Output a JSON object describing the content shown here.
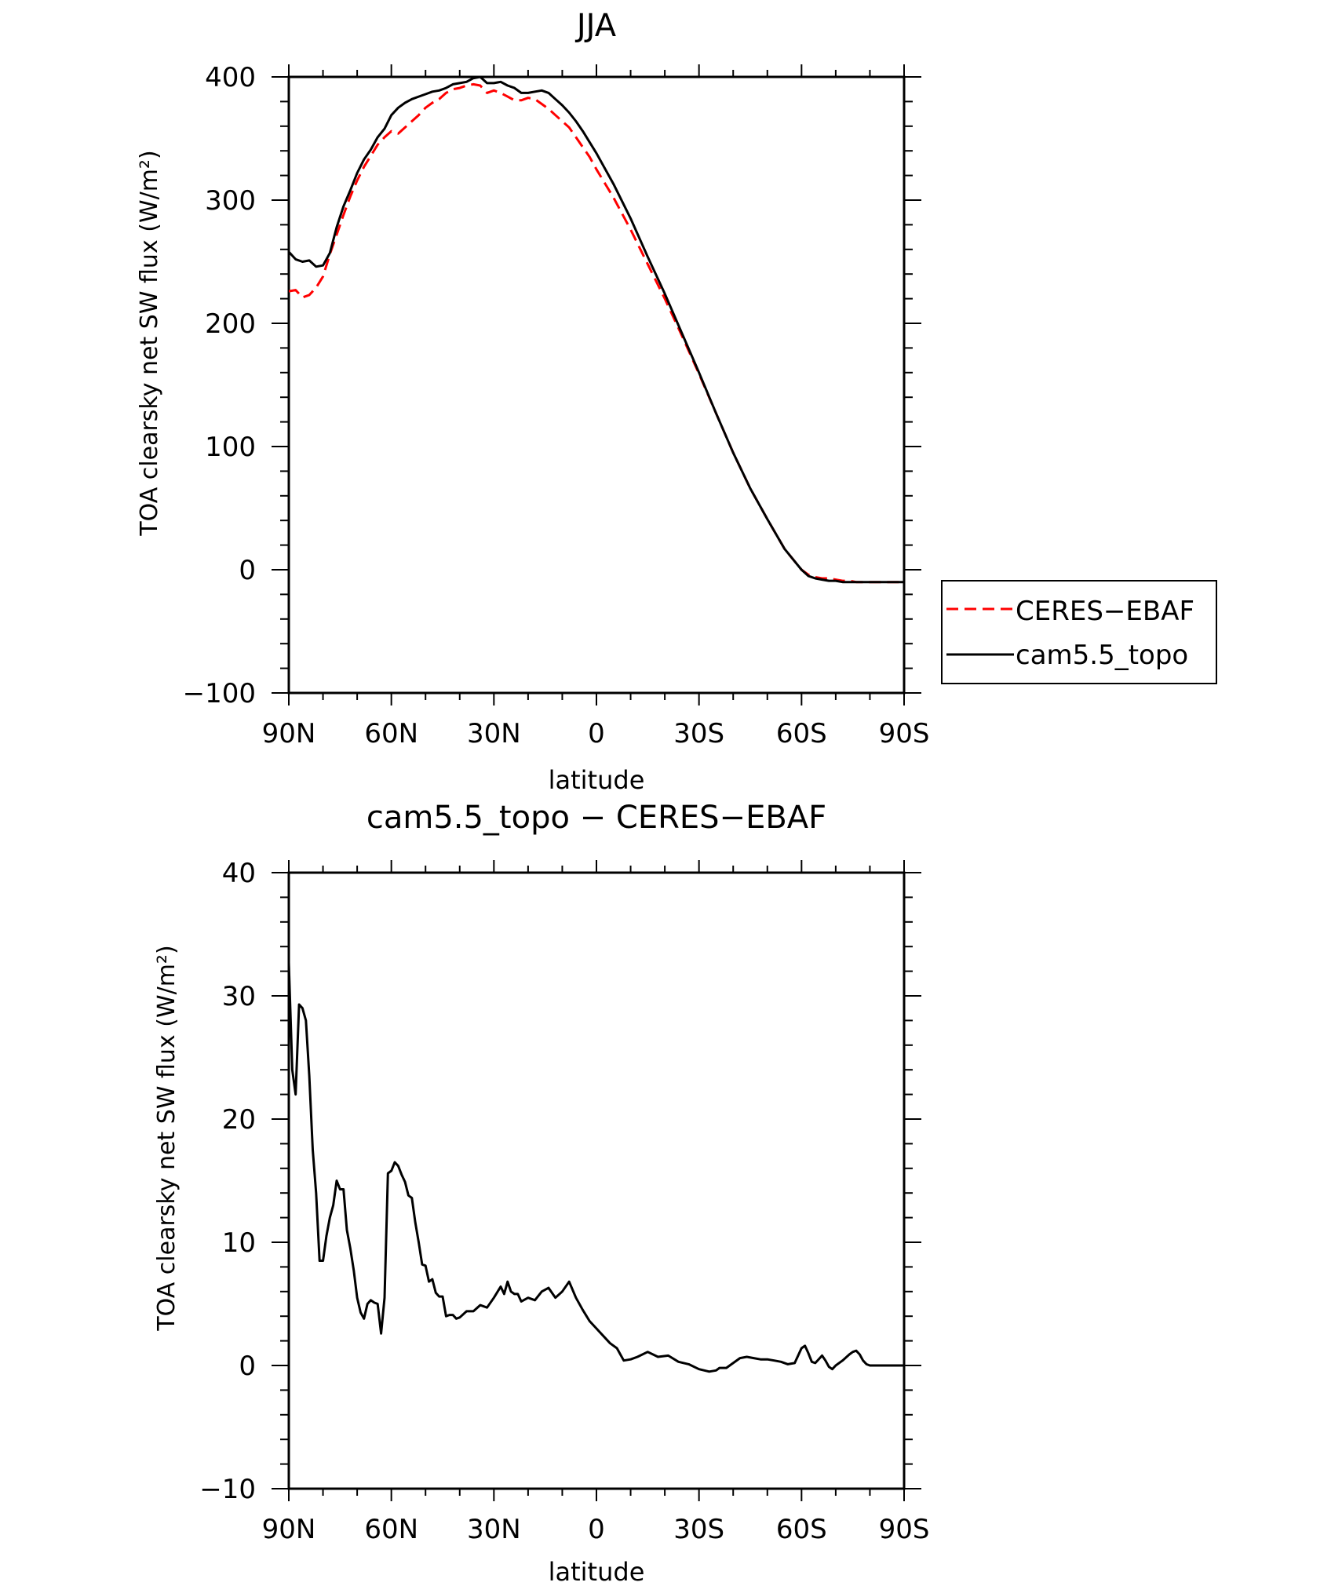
{
  "chart_data": [
    {
      "type": "line",
      "title": "JJA",
      "xlabel": "latitude",
      "ylabel": "TOA clearsky net SW flux (W/m²)",
      "xlim": [
        90,
        -90
      ],
      "ylim": [
        -100,
        400
      ],
      "x_ticks": [
        90,
        60,
        30,
        0,
        -30,
        -60,
        -90
      ],
      "x_tick_labels": [
        "90N",
        "60N",
        "30N",
        "0",
        "30S",
        "60S",
        "90S"
      ],
      "y_ticks": [
        -100,
        0,
        100,
        200,
        300,
        400
      ],
      "y_tick_labels": [
        "−100",
        "0",
        "100",
        "200",
        "300",
        "400"
      ],
      "legend": {
        "placement": "right",
        "entries": [
          {
            "label": "CERES−EBAF",
            "color": "#ff0000",
            "style": "dashed"
          },
          {
            "label": "cam5.5_topo",
            "color": "#000000",
            "style": "solid"
          }
        ]
      },
      "series": [
        {
          "name": "CERES−EBAF",
          "color": "#ff0000",
          "style": "dashed",
          "x": [
            90,
            88,
            86,
            84,
            82,
            80,
            78,
            76,
            74,
            72,
            70,
            68,
            66,
            64,
            62,
            60,
            58,
            56,
            54,
            52,
            50,
            48,
            46,
            44,
            42,
            40,
            38,
            36,
            34,
            32,
            30,
            28,
            26,
            24,
            22,
            20,
            18,
            16,
            14,
            12,
            10,
            8,
            6,
            4,
            2,
            0,
            -5,
            -10,
            -15,
            -20,
            -25,
            -30,
            -35,
            -40,
            -45,
            -50,
            -55,
            -60,
            -62,
            -64,
            -66,
            -68,
            -70,
            -72,
            -74,
            -76,
            -78,
            -80,
            -85,
            -90
          ],
          "y": [
            226,
            227,
            221,
            223,
            229,
            238,
            256,
            272,
            288,
            303,
            316,
            327,
            336,
            345,
            351,
            356,
            354,
            359,
            364,
            369,
            375,
            379,
            382,
            387,
            390,
            391,
            393,
            394,
            393,
            387,
            389,
            387,
            384,
            381,
            381,
            383,
            382,
            378,
            374,
            369,
            364,
            359,
            351,
            343,
            335,
            325,
            302,
            276,
            248,
            220,
            190,
            159,
            127,
            95,
            66,
            41,
            17,
            0,
            -4,
            -6,
            -7,
            -7,
            -8,
            -9,
            -9,
            -10,
            -10,
            -10,
            -10,
            -10
          ]
        },
        {
          "name": "cam5.5_topo",
          "color": "#000000",
          "style": "solid",
          "x": [
            90,
            88,
            86,
            84,
            82,
            80,
            78,
            76,
            74,
            72,
            70,
            68,
            66,
            64,
            62,
            60,
            58,
            56,
            54,
            52,
            50,
            48,
            46,
            44,
            42,
            40,
            38,
            36,
            34,
            32,
            30,
            28,
            26,
            24,
            22,
            20,
            18,
            16,
            14,
            12,
            10,
            8,
            6,
            4,
            2,
            0,
            -5,
            -10,
            -15,
            -20,
            -25,
            -30,
            -35,
            -40,
            -45,
            -50,
            -55,
            -60,
            -62,
            -64,
            -66,
            -68,
            -70,
            -72,
            -74,
            -76,
            -78,
            -80,
            -85,
            -90
          ],
          "y": [
            258,
            252,
            250,
            251,
            246,
            247,
            257,
            278,
            295,
            308,
            322,
            333,
            341,
            351,
            358,
            369,
            375,
            379,
            382,
            384,
            386,
            388,
            389,
            391,
            394,
            395,
            396,
            399,
            400,
            395,
            395,
            396,
            393,
            391,
            387,
            387,
            388,
            389,
            387,
            382,
            377,
            371,
            364,
            356,
            347,
            338,
            313,
            285,
            254,
            224,
            192,
            160,
            127,
            95,
            66,
            41,
            17,
            0,
            -5,
            -7,
            -8,
            -9,
            -9,
            -10,
            -10,
            -10,
            -10,
            -10,
            -10,
            -10
          ]
        }
      ]
    },
    {
      "type": "line",
      "title": "cam5.5_topo − CERES−EBAF",
      "xlabel": "latitude",
      "ylabel": "TOA clearsky net SW flux (W/m²)",
      "xlim": [
        90,
        -90
      ],
      "ylim": [
        -10,
        40
      ],
      "x_ticks": [
        90,
        60,
        30,
        0,
        -30,
        -60,
        -90
      ],
      "x_tick_labels": [
        "90N",
        "60N",
        "30N",
        "0",
        "30S",
        "60S",
        "90S"
      ],
      "y_ticks": [
        -10,
        0,
        10,
        20,
        30,
        40
      ],
      "y_tick_labels": [
        "−10",
        "0",
        "10",
        "20",
        "30",
        "40"
      ],
      "series": [
        {
          "name": "cam5.5_topo − CERES−EBAF",
          "color": "#000000",
          "style": "solid",
          "x": [
            90,
            89,
            88,
            87,
            86,
            85,
            84,
            83,
            82,
            81,
            80,
            79,
            78,
            77,
            76,
            75,
            74,
            73,
            72,
            71,
            70,
            69,
            68,
            67,
            66,
            65,
            64,
            63,
            62,
            61,
            60,
            59,
            58,
            57,
            56,
            55,
            54,
            53,
            52,
            51,
            50,
            49,
            48,
            47,
            46,
            45,
            44,
            43,
            42,
            41,
            40,
            38,
            36,
            34,
            32,
            30,
            28,
            27,
            26,
            25,
            24,
            23,
            22,
            20,
            18,
            16,
            14,
            12,
            10,
            8,
            6,
            4,
            2,
            0,
            -2,
            -4,
            -6,
            -8,
            -10,
            -12,
            -15,
            -18,
            -21,
            -24,
            -27,
            -30,
            -33,
            -35,
            -36,
            -38,
            -40,
            -42,
            -44,
            -46,
            -48,
            -50,
            -52,
            -54,
            -56,
            -58,
            -60,
            -61,
            -62,
            -63,
            -64,
            -65,
            -66,
            -67,
            -68,
            -69,
            -70,
            -72,
            -74,
            -75,
            -76,
            -77,
            -78,
            -79,
            -80,
            -82,
            -85,
            -90
          ],
          "y": [
            32.7,
            24,
            22,
            29.3,
            29,
            28,
            23.5,
            17.5,
            14,
            8.5,
            8.5,
            10.5,
            12,
            13,
            15,
            14.3,
            14.3,
            11,
            9.5,
            7.7,
            5.5,
            4.3,
            3.8,
            5,
            5.3,
            5.1,
            5.0,
            2.6,
            5.5,
            15.6,
            15.8,
            16.5,
            16.2,
            15.5,
            14.9,
            13.8,
            13.6,
            11.6,
            10,
            8.2,
            8.1,
            6.8,
            7.0,
            5.9,
            5.6,
            5.6,
            4.0,
            4.1,
            4.1,
            3.8,
            3.9,
            4.4,
            4.4,
            4.9,
            4.7,
            5.5,
            6.4,
            5.8,
            6.8,
            6.0,
            5.8,
            5.8,
            5.2,
            5.5,
            5.3,
            6.0,
            6.3,
            5.5,
            6.0,
            6.8,
            5.5,
            4.5,
            3.6,
            3.0,
            2.4,
            1.8,
            1.4,
            0.4,
            0.5,
            0.7,
            1.1,
            0.7,
            0.8,
            0.3,
            0.1,
            -0.3,
            -0.5,
            -0.4,
            -0.2,
            -0.2,
            0.2,
            0.6,
            0.7,
            0.6,
            0.5,
            0.5,
            0.4,
            0.3,
            0.1,
            0.2,
            1.4,
            1.6,
            1.0,
            0.3,
            0.2,
            0.5,
            0.8,
            0.4,
            -0.1,
            -0.3,
            0.0,
            0.4,
            0.9,
            1.1,
            1.2,
            0.9,
            0.4,
            0.1,
            0.0,
            0.0,
            0.0,
            0.0
          ]
        }
      ]
    }
  ]
}
